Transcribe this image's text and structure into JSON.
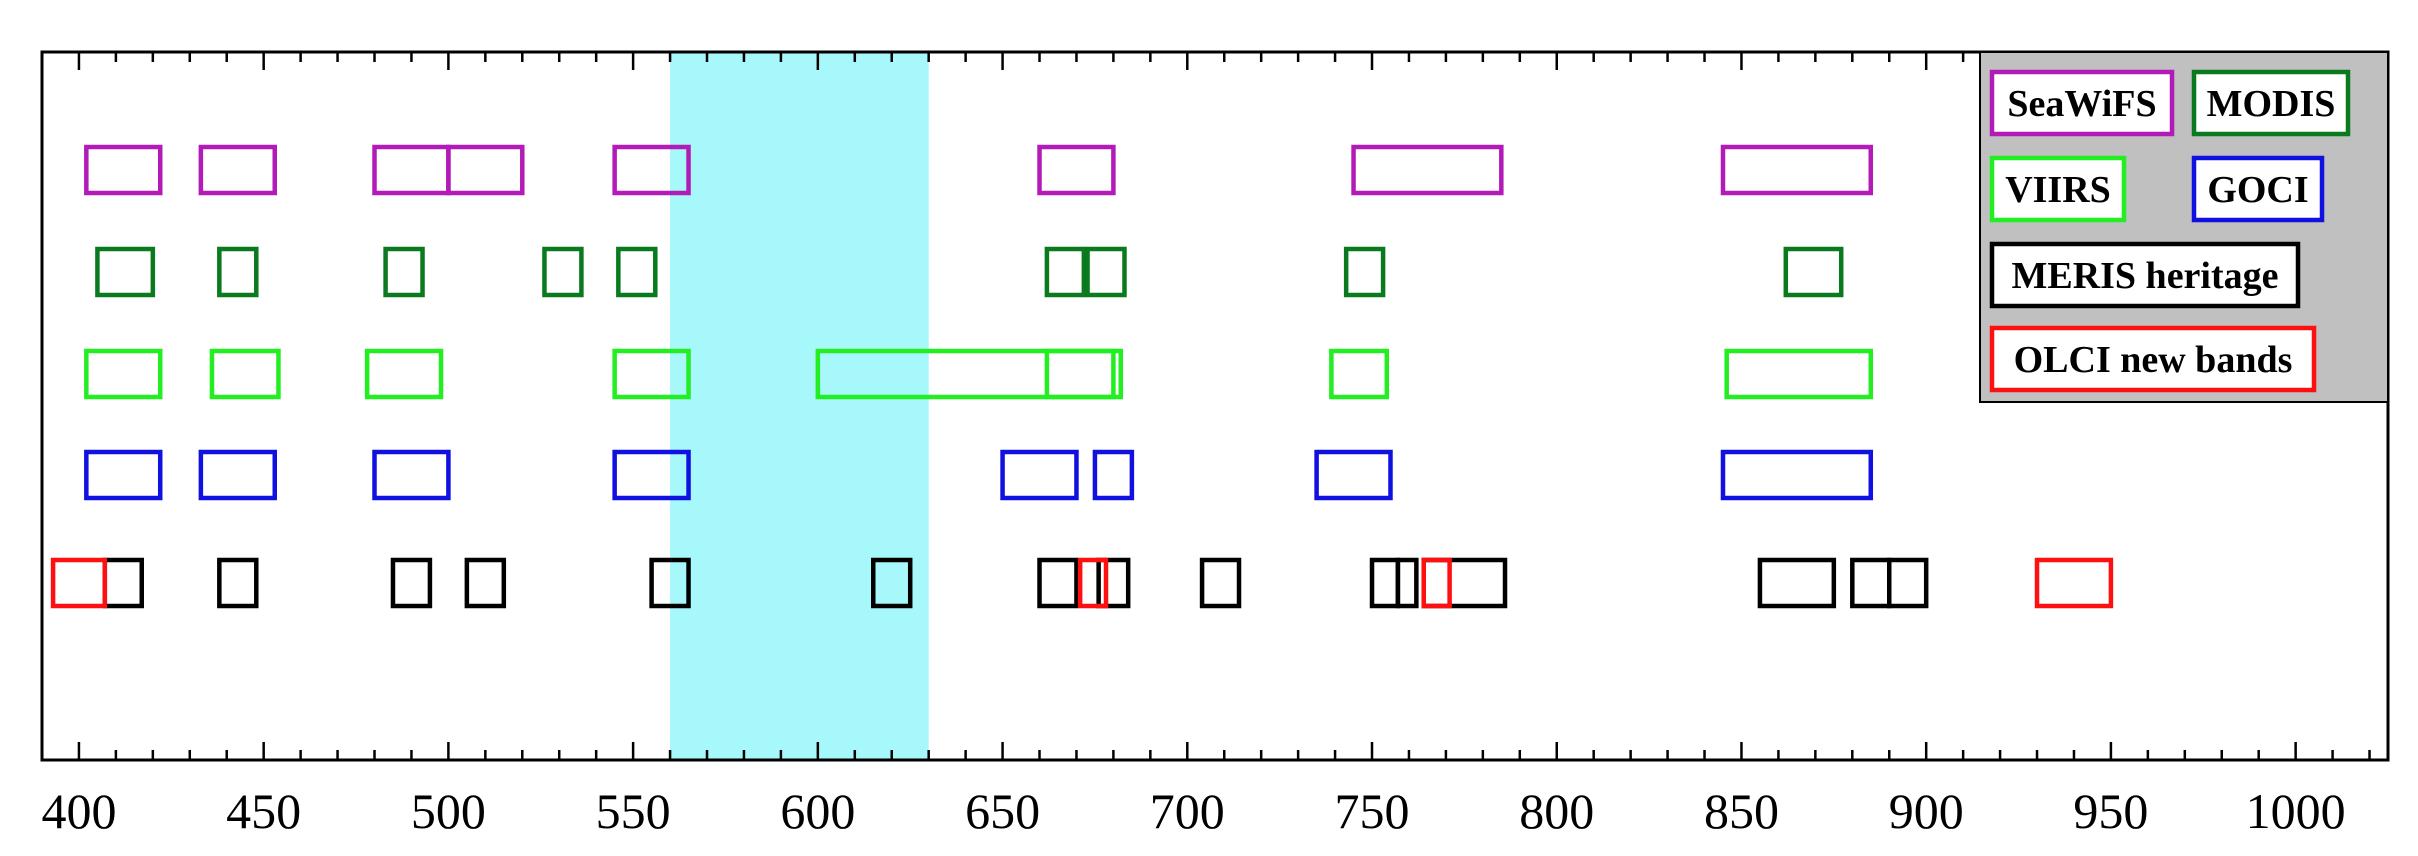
{
  "chart_data": {
    "type": "band-diagram",
    "title": "",
    "xlabel": "",
    "ylabel": "",
    "xlim": [
      390,
      1025
    ],
    "xticks": [
      400,
      450,
      500,
      550,
      600,
      650,
      700,
      750,
      800,
      850,
      900,
      950,
      1000
    ],
    "xtick_labels": [
      "400",
      "450",
      "500",
      "550",
      "600",
      "650",
      "700",
      "750",
      "800",
      "850",
      "900",
      "950",
      "1000"
    ],
    "highlight": {
      "x0": 560,
      "x1": 630,
      "color": "#a6f8fb"
    },
    "legend": {
      "position": "top-right",
      "background": "#c0c0c0",
      "entries": [
        {
          "key": "seawifs",
          "label": "SeaWiFS"
        },
        {
          "key": "modis",
          "label": "MODIS"
        },
        {
          "key": "viirs",
          "label": "VIIRS"
        },
        {
          "key": "goci",
          "label": "GOCI"
        },
        {
          "key": "meris",
          "label": "MERIS heritage"
        },
        {
          "key": "olci",
          "label": "OLCI new bands"
        }
      ]
    },
    "series": [
      {
        "key": "seawifs",
        "name": "SeaWiFS",
        "color": "#b31bb8",
        "bands": [
          [
            402,
            422
          ],
          [
            433,
            453
          ],
          [
            480,
            500
          ],
          [
            500,
            520
          ],
          [
            545,
            565
          ],
          [
            660,
            680
          ],
          [
            745,
            785
          ],
          [
            845,
            885
          ]
        ]
      },
      {
        "key": "modis",
        "name": "MODIS",
        "color": "#0a7a1e",
        "bands": [
          [
            405,
            420
          ],
          [
            438,
            448
          ],
          [
            483,
            493
          ],
          [
            526,
            536
          ],
          [
            546,
            556
          ],
          [
            662,
            672
          ],
          [
            673,
            683
          ],
          [
            743,
            753
          ],
          [
            862,
            877
          ]
        ]
      },
      {
        "key": "viirs",
        "name": "VIIRS",
        "color": "#22ee22",
        "bands": [
          [
            402,
            422
          ],
          [
            436,
            454
          ],
          [
            478,
            498
          ],
          [
            545,
            565
          ],
          [
            600,
            680
          ],
          [
            662,
            682
          ],
          [
            739,
            754
          ],
          [
            846,
            885
          ]
        ]
      },
      {
        "key": "goci",
        "name": "GOCI",
        "color": "#1010e0",
        "bands": [
          [
            402,
            422
          ],
          [
            433,
            453
          ],
          [
            480,
            500
          ],
          [
            545,
            565
          ],
          [
            650,
            670
          ],
          [
            675,
            685
          ],
          [
            735,
            755
          ],
          [
            845,
            885
          ]
        ]
      },
      {
        "key": "meris",
        "name": "MERIS heritage",
        "color": "#000000",
        "bands": [
          [
            407,
            417
          ],
          [
            438,
            448
          ],
          [
            485,
            495
          ],
          [
            505,
            515
          ],
          [
            555,
            565
          ],
          [
            615,
            625
          ],
          [
            660,
            670
          ],
          [
            676,
            684
          ],
          [
            704,
            714
          ],
          [
            750,
            757
          ],
          [
            757,
            762
          ],
          [
            764,
            786
          ],
          [
            855,
            875
          ],
          [
            880,
            890
          ],
          [
            890,
            900
          ]
        ]
      },
      {
        "key": "olci",
        "name": "OLCI new bands",
        "color": "#ff1010",
        "bands": [
          [
            393,
            407
          ],
          [
            671,
            678
          ],
          [
            764,
            771
          ],
          [
            930,
            950
          ]
        ]
      }
    ]
  }
}
